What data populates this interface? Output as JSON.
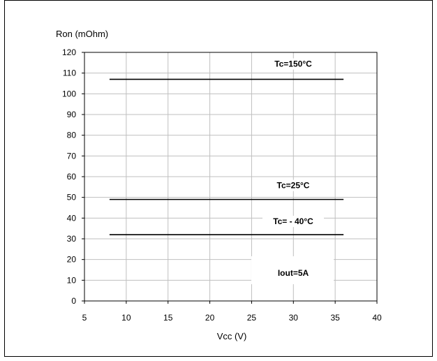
{
  "chart_data": {
    "type": "line",
    "title": "",
    "xlabel": "Vcc (V)",
    "ylabel": "Ron (mOhm)",
    "xlim": [
      5,
      40
    ],
    "ylim": [
      0,
      120
    ],
    "xticks": [
      5,
      10,
      15,
      20,
      25,
      30,
      35,
      40
    ],
    "yticks": [
      0,
      10,
      20,
      30,
      40,
      50,
      60,
      70,
      80,
      90,
      100,
      110,
      120
    ],
    "grid": true,
    "series": [
      {
        "name": "Tc=150°C",
        "x": [
          8,
          36
        ],
        "values": [
          107,
          107
        ]
      },
      {
        "name": "Tc=25°C",
        "x": [
          8,
          36
        ],
        "values": [
          49,
          49
        ]
      },
      {
        "name": "Tc= - 40°C",
        "x": [
          8,
          36
        ],
        "values": [
          32,
          32
        ]
      }
    ],
    "annotations": [
      {
        "text": "Iout=5A"
      }
    ],
    "colors": {
      "line": "#000000",
      "grid": "#bfbfbf",
      "frame": "#000000"
    }
  }
}
